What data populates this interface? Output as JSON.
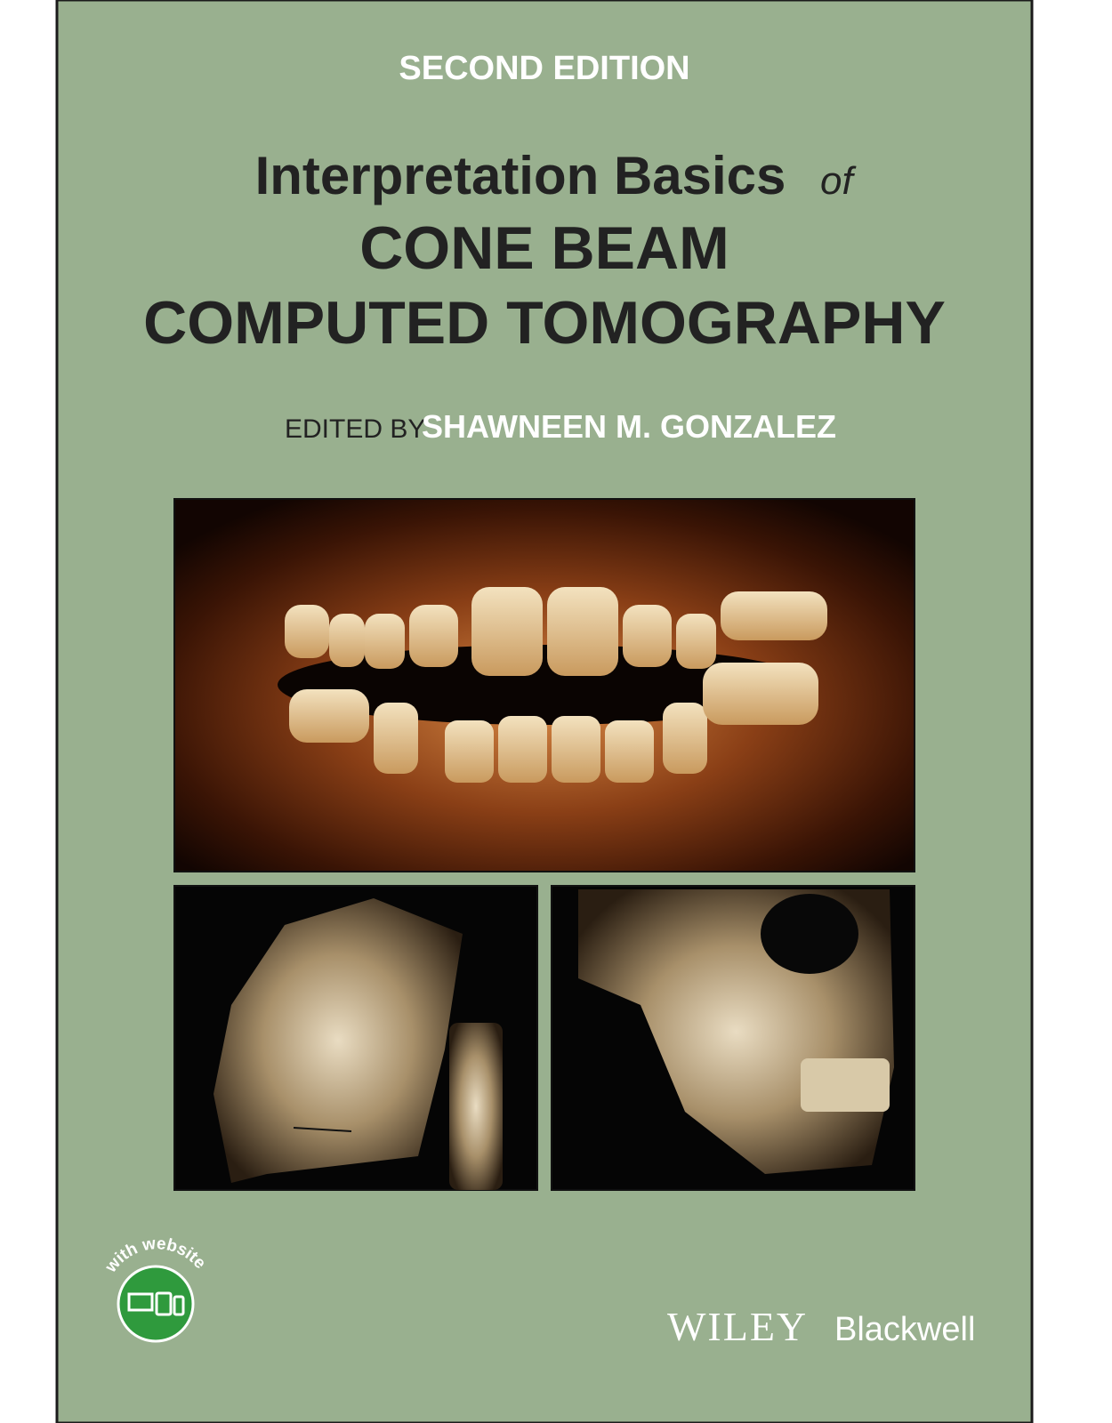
{
  "cover": {
    "edition": "SECOND EDITION",
    "title": {
      "line1": "Interpretation Basics",
      "connector": "of",
      "line2": "CONE BEAM",
      "line3": "COMPUTED TOMOGRAPHY"
    },
    "editor": {
      "label": "EDITED BY",
      "name": "SHAWNEEN M. GONZALEZ"
    },
    "badge": "with website",
    "publisher": {
      "name": "WILEY",
      "imprint": "Blackwell"
    }
  }
}
